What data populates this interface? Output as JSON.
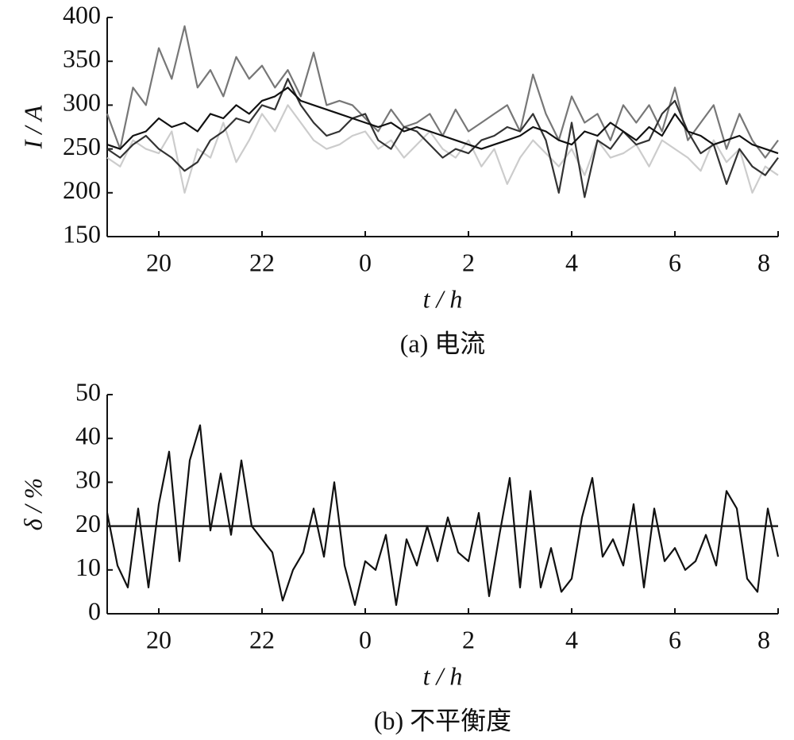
{
  "chart_data": [
    {
      "type": "line",
      "ylabel": "I / A",
      "xlabel": "t / h",
      "caption": "(a) 电流",
      "xlim": [
        19,
        32
      ],
      "ylim": [
        150,
        400
      ],
      "xticks": [
        {
          "value": 20,
          "label": "20"
        },
        {
          "value": 22,
          "label": "22"
        },
        {
          "value": 24,
          "label": "0"
        },
        {
          "value": 26,
          "label": "2"
        },
        {
          "value": 28,
          "label": "4"
        },
        {
          "value": 30,
          "label": "6"
        },
        {
          "value": 32,
          "label": "8"
        }
      ],
      "yticks": [
        150,
        200,
        250,
        300,
        350,
        400
      ],
      "x": [
        19,
        19.25,
        19.5,
        19.75,
        20,
        20.25,
        20.5,
        20.75,
        21,
        21.25,
        21.5,
        21.75,
        22,
        22.25,
        22.5,
        22.75,
        23,
        23.25,
        23.5,
        23.75,
        24,
        24.25,
        24.5,
        24.75,
        25,
        25.25,
        25.5,
        25.75,
        26,
        26.25,
        26.5,
        26.75,
        27,
        27.25,
        27.5,
        27.75,
        28,
        28.25,
        28.5,
        28.75,
        29,
        29.25,
        29.5,
        29.75,
        30,
        30.25,
        30.5,
        30.75,
        31,
        31.25,
        31.5,
        31.75,
        32
      ],
      "series": [
        {
          "color": "#cccccc",
          "values": [
            240,
            230,
            260,
            250,
            245,
            270,
            200,
            250,
            240,
            280,
            235,
            260,
            290,
            270,
            300,
            280,
            260,
            250,
            255,
            265,
            270,
            250,
            260,
            240,
            255,
            270,
            250,
            240,
            260,
            230,
            250,
            210,
            240,
            260,
            245,
            230,
            250,
            220,
            260,
            240,
            245,
            255,
            230,
            260,
            250,
            240,
            225,
            260,
            235,
            250,
            200,
            230,
            220
          ]
        },
        {
          "color": "#777777",
          "values": [
            290,
            250,
            320,
            300,
            365,
            330,
            390,
            320,
            340,
            310,
            355,
            330,
            345,
            320,
            340,
            310,
            360,
            300,
            305,
            300,
            285,
            270,
            295,
            275,
            280,
            290,
            265,
            295,
            270,
            280,
            290,
            300,
            270,
            335,
            290,
            260,
            310,
            280,
            290,
            260,
            300,
            280,
            300,
            270,
            320,
            260,
            280,
            300,
            250,
            290,
            260,
            240,
            260
          ]
        },
        {
          "color": "#333333",
          "values": [
            250,
            240,
            255,
            265,
            250,
            240,
            225,
            235,
            260,
            270,
            285,
            280,
            300,
            295,
            330,
            300,
            280,
            265,
            270,
            285,
            290,
            260,
            250,
            275,
            270,
            255,
            240,
            250,
            245,
            260,
            265,
            275,
            270,
            290,
            260,
            200,
            280,
            195,
            260,
            250,
            270,
            255,
            260,
            290,
            305,
            270,
            245,
            255,
            210,
            250,
            230,
            220,
            240
          ]
        },
        {
          "color": "#111111",
          "values": [
            255,
            250,
            265,
            270,
            285,
            275,
            280,
            270,
            290,
            285,
            300,
            290,
            305,
            310,
            320,
            305,
            300,
            295,
            290,
            285,
            280,
            275,
            280,
            270,
            275,
            270,
            265,
            260,
            255,
            250,
            255,
            260,
            265,
            275,
            270,
            260,
            255,
            270,
            265,
            280,
            270,
            260,
            275,
            265,
            290,
            270,
            265,
            255,
            260,
            265,
            255,
            250,
            245
          ]
        }
      ]
    },
    {
      "type": "line",
      "ylabel": "δ / %",
      "xlabel": "t / h",
      "caption": "(b) 不平衡度",
      "xlim": [
        19,
        32
      ],
      "ylim": [
        0,
        50
      ],
      "xticks": [
        {
          "value": 20,
          "label": "20"
        },
        {
          "value": 22,
          "label": "22"
        },
        {
          "value": 24,
          "label": "0"
        },
        {
          "value": 26,
          "label": "2"
        },
        {
          "value": 28,
          "label": "4"
        },
        {
          "value": 30,
          "label": "6"
        },
        {
          "value": 32,
          "label": "8"
        }
      ],
      "yticks": [
        0,
        10,
        20,
        30,
        40,
        50
      ],
      "hline": 20,
      "x": [
        19,
        19.2,
        19.4,
        19.6,
        19.8,
        20,
        20.2,
        20.4,
        20.6,
        20.8,
        21,
        21.2,
        21.4,
        21.6,
        21.8,
        22,
        22.2,
        22.4,
        22.6,
        22.8,
        23,
        23.2,
        23.4,
        23.6,
        23.8,
        24,
        24.2,
        24.4,
        24.6,
        24.8,
        25,
        25.2,
        25.4,
        25.6,
        25.8,
        26,
        26.2,
        26.4,
        26.6,
        26.8,
        27,
        27.2,
        27.4,
        27.6,
        27.8,
        28,
        28.2,
        28.4,
        28.6,
        28.8,
        29,
        29.2,
        29.4,
        29.6,
        29.8,
        30,
        30.2,
        30.4,
        30.6,
        30.8,
        31,
        31.2,
        31.4,
        31.6,
        31.8,
        32
      ],
      "series": [
        {
          "color": "#111111",
          "values": [
            23,
            11,
            6,
            24,
            6,
            25,
            37,
            12,
            35,
            43,
            19,
            32,
            18,
            35,
            20,
            17,
            14,
            3,
            10,
            14,
            24,
            13,
            30,
            11,
            2,
            12,
            10,
            18,
            2,
            17,
            11,
            20,
            12,
            22,
            14,
            12,
            23,
            4,
            18,
            31,
            6,
            28,
            6,
            15,
            5,
            8,
            22,
            31,
            13,
            17,
            11,
            25,
            6,
            24,
            12,
            15,
            10,
            12,
            18,
            11,
            28,
            24,
            8,
            5,
            24,
            13
          ]
        }
      ]
    }
  ]
}
